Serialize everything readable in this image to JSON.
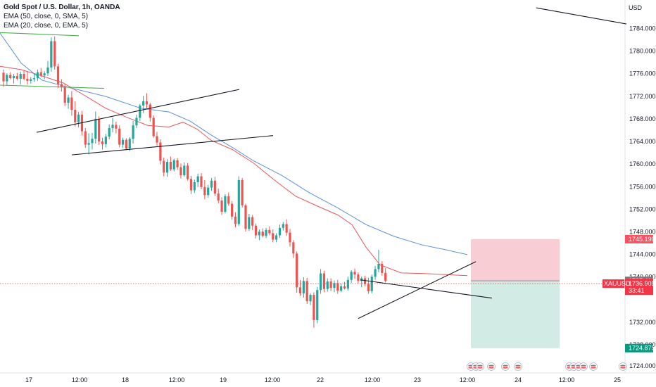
{
  "legend": {
    "title": "Gold Spot / U.S. Dollar, 1h, OANDA",
    "ema50": "EMA (50, close, 0, SMA, 5)",
    "ema20": "EMA (20, close, 0, EMA, 5)"
  },
  "colors": {
    "bull": "#26a69a",
    "bear": "#ef5350",
    "ema50": "#5b8fd9",
    "ema20": "#e8575b",
    "trendline": "#131722",
    "green_line": "#4caf50",
    "stop_zone": "#f7c6cc",
    "target_zone": "#cde9e1"
  },
  "chart_data": {
    "type": "candlestick",
    "currency_label": "USD",
    "y_range": [
      1722,
      1788
    ],
    "y_ticks": [
      "1784.000",
      "1780.000",
      "1776.000",
      "1772.000",
      "1768.000",
      "1764.000",
      "1760.000",
      "1756.000",
      "1752.000",
      "1748.000",
      "1744.000",
      "1740.000",
      "1732.000",
      "1728.000",
      "1724.000"
    ],
    "x_labels": [
      "17",
      "12:00",
      "18",
      "12:00",
      "19",
      "12:00",
      "22",
      "12:00",
      "23",
      "12:00",
      "24",
      "12:00",
      "25"
    ],
    "candles": [
      [
        1776.2,
        1776.8,
        1773.6,
        1774.6
      ],
      [
        1774.6,
        1776.1,
        1773.9,
        1775.8
      ],
      [
        1775.8,
        1776.3,
        1775.0,
        1775.2
      ],
      [
        1775.2,
        1776.0,
        1774.2,
        1775.6
      ],
      [
        1775.6,
        1776.2,
        1774.8,
        1775.1
      ],
      [
        1775.1,
        1776.4,
        1774.0,
        1776.0
      ],
      [
        1776.0,
        1776.6,
        1774.8,
        1775.1
      ],
      [
        1775.1,
        1776.5,
        1774.0,
        1774.7
      ],
      [
        1774.7,
        1775.4,
        1774.2,
        1775.0
      ],
      [
        1775.0,
        1776.1,
        1774.5,
        1775.2
      ],
      [
        1775.2,
        1776.8,
        1774.7,
        1776.3
      ],
      [
        1776.3,
        1777.1,
        1775.4,
        1775.7
      ],
      [
        1775.7,
        1776.5,
        1775.0,
        1776.1
      ],
      [
        1776.1,
        1778.4,
        1775.6,
        1777.2
      ],
      [
        1777.2,
        1782.8,
        1776.4,
        1782.1
      ],
      [
        1782.1,
        1783.0,
        1776.8,
        1777.4
      ],
      [
        1777.4,
        1777.9,
        1773.4,
        1774.1
      ],
      [
        1774.1,
        1775.0,
        1772.7,
        1773.5
      ],
      [
        1773.5,
        1774.2,
        1770.0,
        1770.6
      ],
      [
        1770.6,
        1772.1,
        1769.5,
        1771.6
      ],
      [
        1771.6,
        1772.8,
        1768.2,
        1769.3
      ],
      [
        1769.3,
        1770.9,
        1766.2,
        1767.0
      ],
      [
        1767.0,
        1768.9,
        1766.0,
        1768.4
      ],
      [
        1768.4,
        1769.1,
        1764.5,
        1765.3
      ],
      [
        1765.3,
        1765.9,
        1762.2,
        1762.8
      ],
      [
        1762.8,
        1764.9,
        1761.0,
        1763.1
      ],
      [
        1763.1,
        1765.0,
        1761.9,
        1763.9
      ],
      [
        1763.9,
        1769.0,
        1763.0,
        1767.6
      ],
      [
        1767.6,
        1768.1,
        1762.8,
        1763.4
      ],
      [
        1763.4,
        1764.1,
        1761.9,
        1762.9
      ],
      [
        1762.9,
        1764.8,
        1762.3,
        1764.3
      ],
      [
        1764.3,
        1766.6,
        1763.8,
        1765.9
      ],
      [
        1765.9,
        1767.8,
        1765.1,
        1766.5
      ],
      [
        1766.5,
        1767.1,
        1764.9,
        1765.8
      ],
      [
        1765.8,
        1766.4,
        1762.3,
        1762.8
      ],
      [
        1762.8,
        1764.1,
        1762.2,
        1763.7
      ],
      [
        1763.7,
        1764.0,
        1761.8,
        1762.1
      ],
      [
        1762.1,
        1764.2,
        1761.6,
        1763.9
      ],
      [
        1763.9,
        1767.2,
        1763.0,
        1766.4
      ],
      [
        1766.4,
        1768.4,
        1765.9,
        1767.8
      ],
      [
        1767.8,
        1770.4,
        1767.2,
        1770.1
      ],
      [
        1770.1,
        1771.9,
        1768.7,
        1770.9
      ],
      [
        1770.9,
        1772.4,
        1769.6,
        1770.3
      ],
      [
        1770.3,
        1770.6,
        1767.1,
        1767.8
      ],
      [
        1767.8,
        1768.3,
        1764.1,
        1764.4
      ],
      [
        1764.4,
        1765.2,
        1762.6,
        1763.2
      ],
      [
        1763.2,
        1763.8,
        1759.1,
        1759.8
      ],
      [
        1759.8,
        1760.4,
        1756.9,
        1757.6
      ],
      [
        1757.6,
        1760.1,
        1756.8,
        1759.6
      ],
      [
        1759.6,
        1760.6,
        1757.9,
        1758.2
      ],
      [
        1758.2,
        1760.2,
        1757.8,
        1759.9
      ],
      [
        1759.9,
        1760.3,
        1758.1,
        1758.6
      ],
      [
        1758.6,
        1759.3,
        1756.5,
        1757.1
      ],
      [
        1757.1,
        1759.5,
        1756.8,
        1758.9
      ],
      [
        1758.9,
        1759.4,
        1756.1,
        1756.4
      ],
      [
        1756.4,
        1757.0,
        1753.6,
        1754.3
      ],
      [
        1754.3,
        1756.3,
        1753.8,
        1755.8
      ],
      [
        1755.8,
        1757.4,
        1754.9,
        1756.9
      ],
      [
        1756.9,
        1757.5,
        1754.5,
        1754.9
      ],
      [
        1754.9,
        1756.2,
        1752.6,
        1753.4
      ],
      [
        1753.4,
        1755.3,
        1752.9,
        1754.8
      ],
      [
        1754.8,
        1756.6,
        1754.2,
        1756.1
      ],
      [
        1756.1,
        1756.8,
        1753.2,
        1753.7
      ],
      [
        1753.7,
        1754.6,
        1751.9,
        1752.4
      ],
      [
        1752.4,
        1753.0,
        1749.7,
        1750.3
      ],
      [
        1750.3,
        1753.6,
        1750.0,
        1753.2
      ],
      [
        1753.2,
        1753.9,
        1751.4,
        1751.8
      ],
      [
        1751.8,
        1752.3,
        1748.8,
        1749.4
      ],
      [
        1749.4,
        1750.2,
        1747.4,
        1748.0
      ],
      [
        1748.0,
        1756.9,
        1747.6,
        1756.2
      ],
      [
        1756.2,
        1756.6,
        1751.1,
        1751.5
      ],
      [
        1751.5,
        1751.8,
        1746.6,
        1747.1
      ],
      [
        1747.1,
        1749.9,
        1746.7,
        1749.3
      ],
      [
        1749.3,
        1749.7,
        1746.9,
        1747.7
      ],
      [
        1747.7,
        1748.1,
        1745.3,
        1745.9
      ],
      [
        1745.9,
        1747.0,
        1745.0,
        1746.6
      ],
      [
        1746.6,
        1747.2,
        1745.5,
        1745.8
      ],
      [
        1745.8,
        1747.3,
        1745.4,
        1746.9
      ],
      [
        1746.9,
        1747.6,
        1745.9,
        1746.3
      ],
      [
        1746.3,
        1747.0,
        1744.6,
        1745.1
      ],
      [
        1745.1,
        1746.3,
        1744.6,
        1745.9
      ],
      [
        1745.9,
        1747.9,
        1745.4,
        1747.3
      ],
      [
        1747.3,
        1748.4,
        1746.8,
        1748.0
      ],
      [
        1748.0,
        1748.9,
        1745.8,
        1746.4
      ],
      [
        1746.4,
        1747.1,
        1743.8,
        1744.6
      ],
      [
        1744.6,
        1745.0,
        1741.7,
        1742.5
      ],
      [
        1742.5,
        1742.9,
        1735.2,
        1736.2
      ],
      [
        1736.2,
        1737.6,
        1734.6,
        1735.1
      ],
      [
        1735.1,
        1738.1,
        1734.3,
        1737.4
      ],
      [
        1737.4,
        1738.0,
        1733.1,
        1733.6
      ],
      [
        1733.6,
        1735.1,
        1732.9,
        1734.8
      ],
      [
        1734.8,
        1735.3,
        1728.7,
        1730.1
      ],
      [
        1730.1,
        1736.3,
        1729.5,
        1735.7
      ],
      [
        1735.7,
        1739.6,
        1735.0,
        1738.8
      ],
      [
        1738.8,
        1739.3,
        1735.3,
        1735.9
      ],
      [
        1735.9,
        1737.9,
        1735.4,
        1737.3
      ],
      [
        1737.3,
        1737.9,
        1735.5,
        1736.1
      ],
      [
        1736.1,
        1737.5,
        1735.3,
        1737.0
      ],
      [
        1737.0,
        1737.6,
        1735.0,
        1735.6
      ],
      [
        1735.6,
        1736.9,
        1735.3,
        1736.4
      ],
      [
        1736.4,
        1737.2,
        1735.8,
        1736.0
      ],
      [
        1736.0,
        1738.2,
        1735.6,
        1737.6
      ],
      [
        1737.6,
        1739.4,
        1737.0,
        1739.1
      ],
      [
        1739.1,
        1739.7,
        1737.8,
        1738.6
      ],
      [
        1738.6,
        1739.0,
        1736.9,
        1737.4
      ],
      [
        1737.4,
        1738.2,
        1736.2,
        1737.9
      ],
      [
        1737.9,
        1738.4,
        1736.4,
        1736.8
      ],
      [
        1736.8,
        1738.0,
        1735.0,
        1735.5
      ],
      [
        1735.5,
        1738.6,
        1735.1,
        1738.2
      ],
      [
        1738.2,
        1740.2,
        1737.6,
        1739.6
      ],
      [
        1739.6,
        1743.2,
        1739.0,
        1740.6
      ],
      [
        1740.6,
        1741.1,
        1738.4,
        1738.9
      ],
      [
        1738.9,
        1739.8,
        1737.1,
        1737.4
      ]
    ],
    "ema50": [
      [
        0,
        1783.6
      ],
      [
        30,
        1778.0
      ],
      [
        60,
        1774.8
      ],
      [
        100,
        1773.4
      ],
      [
        150,
        1771.8
      ],
      [
        200,
        1769.6
      ],
      [
        240,
        1768.9
      ],
      [
        270,
        1767.2
      ],
      [
        300,
        1764.6
      ],
      [
        330,
        1762.3
      ],
      [
        360,
        1759.8
      ],
      [
        400,
        1757.1
      ],
      [
        440,
        1753.8
      ],
      [
        480,
        1751.0
      ],
      [
        520,
        1747.9
      ],
      [
        560,
        1745.7
      ],
      [
        600,
        1744.1
      ],
      [
        630,
        1743.3
      ],
      [
        664,
        1742.3
      ]
    ],
    "ema20": [
      [
        0,
        1777.4
      ],
      [
        30,
        1776.8
      ],
      [
        60,
        1775.6
      ],
      [
        90,
        1774.3
      ],
      [
        120,
        1772.0
      ],
      [
        150,
        1769.6
      ],
      [
        180,
        1767.9
      ],
      [
        210,
        1766.4
      ],
      [
        240,
        1766.1
      ],
      [
        260,
        1767.0
      ],
      [
        280,
        1765.7
      ],
      [
        300,
        1763.6
      ],
      [
        330,
        1761.9
      ],
      [
        360,
        1759.4
      ],
      [
        390,
        1756.2
      ],
      [
        420,
        1753.2
      ],
      [
        450,
        1751.4
      ],
      [
        480,
        1749.7
      ],
      [
        500,
        1747.9
      ],
      [
        520,
        1743.7
      ],
      [
        540,
        1740.4
      ],
      [
        570,
        1738.9
      ],
      [
        600,
        1738.8
      ],
      [
        630,
        1738.6
      ],
      [
        664,
        1738.4
      ]
    ],
    "trendlines": [
      {
        "kind": "black",
        "points": [
          [
            52,
            1765.1
          ],
          [
            340,
            1773.1
          ]
        ]
      },
      {
        "kind": "black",
        "points": [
          [
            102,
            1760.9
          ],
          [
            388,
            1764.5
          ]
        ]
      },
      {
        "kind": "black",
        "points": [
          [
            509,
            1730.4
          ],
          [
            676,
            1741.0
          ]
        ]
      },
      {
        "kind": "black",
        "points": [
          [
            512,
            1737.6
          ],
          [
            699,
            1734.2
          ]
        ]
      },
      {
        "kind": "black",
        "points": [
          [
            762,
            1788.3
          ],
          [
            890,
            1785.3
          ]
        ]
      },
      {
        "kind": "green",
        "points": [
          [
            0,
            1783.7
          ],
          [
            112,
            1783.1
          ]
        ]
      },
      {
        "kind": "green",
        "points": [
          [
            0,
            1773.9
          ],
          [
            148,
            1773.3
          ]
        ]
      }
    ],
    "position": {
      "entry": 1737.419,
      "stop": 1745.19,
      "target": 1724.879,
      "x_start": 669,
      "x_end": 795
    },
    "current_price": {
      "symbol": "XAUUSD",
      "price": "1736.905",
      "countdown": "33:41"
    },
    "price_tags": {
      "stop": "1745.190",
      "entry": "1737.419",
      "target": "1724.879"
    }
  },
  "event_icon_groups": [
    [
      669,
      676,
      682,
      698,
      718,
      736
    ],
    [
      809,
      815,
      822,
      829,
      843
    ],
    [
      885
    ]
  ]
}
